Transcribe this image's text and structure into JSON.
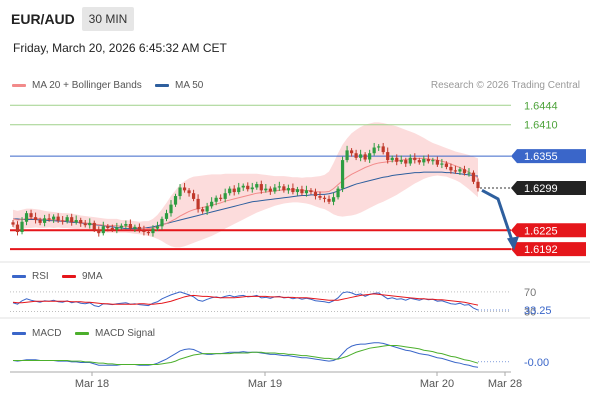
{
  "header": {
    "symbol": "EUR/AUD",
    "timeframe": "30 MIN",
    "datetime": "Friday, March 20, 2026 6:45:32 AM CET",
    "credit": "Research © 2026 Trading Central"
  },
  "legend": {
    "ma20_label": "MA 20 + Bollinger Bands",
    "ma50_label": "MA 50",
    "rsi_label": "RSI",
    "rsi_ma_label": "9MA",
    "macd_label": "MACD",
    "macd_signal_label": "MACD Signal"
  },
  "colors": {
    "ma20": "#f28a8a",
    "ma50": "#2e5f9e",
    "band": "#fbd6d6",
    "bull": "#2e9c41",
    "bear": "#c0392b",
    "support": "#e5161b",
    "resistance_green": "#9fd18a",
    "resistance_blue": "#3a66c9",
    "rsi": "#3a66c9",
    "rsi_ma": "#e5161b",
    "macd": "#3a66c9",
    "macd_signal": "#4caf2c"
  },
  "chart_data": [
    {
      "type": "candlestick",
      "y_range": [
        1.618,
        1.6455
      ],
      "x_ticks": [
        "Mar 18",
        "Mar 19",
        "Mar 20",
        "Mar 28"
      ],
      "levels": [
        {
          "label": "1.6444",
          "value": 1.6444,
          "kind": "resistance"
        },
        {
          "label": "1.6410",
          "value": 1.641,
          "kind": "resistance"
        },
        {
          "label": "1.6355",
          "value": 1.6355,
          "kind": "pivot"
        },
        {
          "label": "1.6299",
          "value": 1.6299,
          "kind": "last"
        },
        {
          "label": "1.6225",
          "value": 1.6225,
          "kind": "support"
        },
        {
          "label": "1.6192",
          "value": 1.6192,
          "kind": "support"
        }
      ],
      "forecast": {
        "from": 1.6295,
        "via": 1.628,
        "to": 1.6195
      },
      "closes": [
        1.6235,
        1.6222,
        1.624,
        1.6255,
        1.6248,
        1.6243,
        1.6238,
        1.6246,
        1.6244,
        1.6249,
        1.6242,
        1.6241,
        1.6248,
        1.6239,
        1.6243,
        1.6237,
        1.6234,
        1.6238,
        1.6226,
        1.622,
        1.6232,
        1.6229,
        1.6226,
        1.623,
        1.6233,
        1.6236,
        1.6228,
        1.6231,
        1.6225,
        1.6222,
        1.622,
        1.6228,
        1.6232,
        1.6245,
        1.6255,
        1.627,
        1.6285,
        1.63,
        1.6295,
        1.629,
        1.628,
        1.6262,
        1.6258,
        1.6267,
        1.6275,
        1.6282,
        1.628,
        1.629,
        1.6298,
        1.6292,
        1.63,
        1.6303,
        1.6297,
        1.63,
        1.6306,
        1.6295,
        1.6298,
        1.6293,
        1.63,
        1.6302,
        1.6295,
        1.6299,
        1.6292,
        1.6297,
        1.629,
        1.6295,
        1.6292,
        1.6285,
        1.6282,
        1.628,
        1.6275,
        1.6283,
        1.6298,
        1.6348,
        1.6365,
        1.636,
        1.6352,
        1.6358,
        1.6349,
        1.636,
        1.637,
        1.6372,
        1.6362,
        1.6348,
        1.6352,
        1.6345,
        1.6348,
        1.6342,
        1.6352,
        1.6348,
        1.6344,
        1.635,
        1.6346,
        1.6348,
        1.634,
        1.6342,
        1.6336,
        1.633,
        1.6328,
        1.6332,
        1.6325,
        1.6326,
        1.631,
        1.6299
      ],
      "ma20": [
        1.6245,
        1.6243,
        1.6244,
        1.6246,
        1.6246,
        1.6246,
        1.6245,
        1.6244,
        1.6244,
        1.6243,
        1.6243,
        1.6242,
        1.6242,
        1.6241,
        1.624,
        1.6239,
        1.6238,
        1.6237,
        1.6236,
        1.6235,
        1.6234,
        1.6233,
        1.6233,
        1.6233,
        1.6232,
        1.6232,
        1.6231,
        1.623,
        1.6229,
        1.6229,
        1.6228,
        1.6229,
        1.6231,
        1.6234,
        1.6237,
        1.6241,
        1.6245,
        1.625,
        1.6254,
        1.6258,
        1.6261,
        1.6263,
        1.6265,
        1.6267,
        1.6269,
        1.6271,
        1.6273,
        1.6276,
        1.6278,
        1.628,
        1.6282,
        1.6284,
        1.6286,
        1.6288,
        1.629,
        1.6291,
        1.6292,
        1.6293,
        1.6294,
        1.6295,
        1.6296,
        1.6296,
        1.6296,
        1.6296,
        1.6295,
        1.6295,
        1.6294,
        1.6293,
        1.6292,
        1.6292,
        1.6293,
        1.6298,
        1.6305,
        1.6312,
        1.6318,
        1.6323,
        1.6327,
        1.6331,
        1.6335,
        1.6338,
        1.6341,
        1.6343,
        1.6344,
        1.6345,
        1.6346,
        1.6347,
        1.6348,
        1.6349,
        1.635,
        1.6351,
        1.6351,
        1.6351,
        1.635,
        1.6349,
        1.6348,
        1.6346,
        1.6344,
        1.6341,
        1.6338,
        1.6335,
        1.6331,
        1.6327,
        1.6322,
        1.6317
      ],
      "ma50": [
        1.6245,
        1.6245,
        1.6244,
        1.6244,
        1.6244,
        1.6244,
        1.6243,
        1.6243,
        1.6242,
        1.6242,
        1.6241,
        1.6241,
        1.624,
        1.6239,
        1.6239,
        1.6238,
        1.6237,
        1.6236,
        1.6235,
        1.6234,
        1.6233,
        1.6232,
        1.6231,
        1.623,
        1.6229,
        1.6228,
        1.6228,
        1.6228,
        1.6228,
        1.6229,
        1.623,
        1.6231,
        1.6233,
        1.6235,
        1.6237,
        1.6239,
        1.6241,
        1.6243,
        1.6245,
        1.6247,
        1.6249,
        1.6251,
        1.6253,
        1.6255,
        1.6257,
        1.6259,
        1.6261,
        1.6263,
        1.6265,
        1.6267,
        1.6269,
        1.6271,
        1.6273,
        1.6275,
        1.6276,
        1.6277,
        1.6278,
        1.6279,
        1.628,
        1.6281,
        1.6282,
        1.6283,
        1.6284,
        1.6285,
        1.6286,
        1.6286,
        1.6287,
        1.6287,
        1.6288,
        1.6288,
        1.6289,
        1.6291,
        1.6294,
        1.6297,
        1.63,
        1.6303,
        1.6306,
        1.6308,
        1.631,
        1.6312,
        1.6314,
        1.6316,
        1.6318,
        1.6319,
        1.6321,
        1.6322,
        1.6323,
        1.6324,
        1.6325,
        1.6326,
        1.6326,
        1.6327,
        1.6327,
        1.6327,
        1.6327,
        1.6327,
        1.6326,
        1.6326,
        1.6325,
        1.6324,
        1.6323,
        1.6322,
        1.6321,
        1.632
      ],
      "band_width": [
        0.0016,
        0.0016,
        0.0017,
        0.0017,
        0.0017,
        0.0016,
        0.0016,
        0.0015,
        0.0014,
        0.0014,
        0.0013,
        0.0013,
        0.0013,
        0.0013,
        0.0013,
        0.0012,
        0.0012,
        0.0012,
        0.0012,
        0.0012,
        0.0012,
        0.0012,
        0.0012,
        0.0012,
        0.0011,
        0.0011,
        0.0011,
        0.0011,
        0.0011,
        0.0012,
        0.0013,
        0.0016,
        0.0021,
        0.0028,
        0.0036,
        0.0044,
        0.005,
        0.0055,
        0.0057,
        0.0058,
        0.0058,
        0.0057,
        0.0056,
        0.0055,
        0.0054,
        0.0052,
        0.005,
        0.0048,
        0.0046,
        0.0044,
        0.0042,
        0.004,
        0.0038,
        0.0036,
        0.0034,
        0.0032,
        0.003,
        0.0028,
        0.0026,
        0.0025,
        0.0024,
        0.0023,
        0.0022,
        0.0022,
        0.0022,
        0.0023,
        0.0024,
        0.0026,
        0.0028,
        0.003,
        0.0035,
        0.0045,
        0.0055,
        0.0063,
        0.0068,
        0.0072,
        0.0074,
        0.0075,
        0.0075,
        0.0074,
        0.0073,
        0.0071,
        0.0069,
        0.0066,
        0.0063,
        0.006,
        0.0056,
        0.0052,
        0.0048,
        0.0044,
        0.004,
        0.0036,
        0.0032,
        0.0029,
        0.0027,
        0.0026,
        0.0025,
        0.0025,
        0.0025,
        0.0026,
        0.0028,
        0.003,
        0.0032,
        0.0034
      ]
    },
    {
      "type": "line",
      "name": "RSI",
      "levels": [
        {
          "label": "70",
          "value": 70
        },
        {
          "label": "30",
          "value": 30
        }
      ],
      "last_label": "33.25",
      "y_range": [
        25,
        78
      ],
      "rsi": [
        48,
        45,
        52,
        56,
        53,
        51,
        49,
        52,
        51,
        53,
        50,
        49,
        52,
        48,
        50,
        47,
        46,
        48,
        42,
        40,
        46,
        45,
        44,
        46,
        47,
        48,
        45,
        46,
        44,
        43,
        42,
        47,
        50,
        56,
        60,
        64,
        67,
        70,
        67,
        64,
        60,
        53,
        51,
        55,
        58,
        60,
        58,
        61,
        63,
        60,
        62,
        63,
        60,
        61,
        63,
        58,
        59,
        57,
        60,
        61,
        58,
        59,
        56,
        58,
        55,
        57,
        55,
        52,
        51,
        50,
        48,
        52,
        58,
        68,
        70,
        68,
        64,
        66,
        61,
        65,
        67,
        68,
        62,
        56,
        58,
        55,
        56,
        53,
        57,
        55,
        53,
        56,
        54,
        55,
        51,
        52,
        49,
        46,
        45,
        47,
        43,
        44,
        37,
        33
      ],
      "ma9": [
        49,
        48,
        48,
        49,
        50,
        51,
        51,
        51,
        51,
        51,
        51,
        51,
        51,
        50,
        50,
        50,
        49,
        49,
        48,
        47,
        46,
        46,
        45,
        45,
        45,
        45,
        45,
        45,
        46,
        46,
        45,
        45,
        46,
        47,
        49,
        51,
        54,
        57,
        60,
        62,
        63,
        62,
        61,
        61,
        60,
        59,
        58,
        58,
        58,
        58,
        59,
        60,
        61,
        61,
        61,
        61,
        61,
        60,
        60,
        60,
        59,
        59,
        59,
        58,
        58,
        58,
        57,
        56,
        55,
        54,
        53,
        53,
        53,
        55,
        57,
        59,
        61,
        63,
        64,
        65,
        66,
        65,
        64,
        63,
        62,
        61,
        60,
        59,
        58,
        57,
        56,
        56,
        55,
        55,
        54,
        54,
        53,
        52,
        51,
        50,
        49,
        47,
        45,
        43
      ]
    },
    {
      "type": "line",
      "name": "MACD",
      "last_label": "-0.00",
      "y_range": [
        -0.0012,
        0.0032
      ],
      "macd": [
        0.0002,
        0.0001,
        0.0002,
        0.0003,
        0.0003,
        0.0003,
        0.0002,
        0.0002,
        0.0002,
        0.0002,
        0.0001,
        0.0001,
        0.0001,
        0.0,
        0.0,
        -0.0001,
        -0.0001,
        -0.0001,
        -0.0003,
        -0.0005,
        -0.0005,
        -0.0005,
        -0.0005,
        -0.0005,
        -0.0004,
        -0.0004,
        -0.0004,
        -0.0004,
        -0.0005,
        -0.0005,
        -0.0005,
        -0.0004,
        -0.0002,
        0.0001,
        0.0004,
        0.0008,
        0.0012,
        0.0016,
        0.0018,
        0.0019,
        0.0018,
        0.0015,
        0.0012,
        0.0011,
        0.0011,
        0.0012,
        0.0012,
        0.0013,
        0.0014,
        0.0014,
        0.0014,
        0.0015,
        0.0014,
        0.0014,
        0.0014,
        0.0013,
        0.0012,
        0.0011,
        0.0011,
        0.001,
        0.0009,
        0.0009,
        0.0008,
        0.0007,
        0.0006,
        0.0006,
        0.0005,
        0.0004,
        0.0003,
        0.0002,
        0.0001,
        0.0002,
        0.0005,
        0.0012,
        0.0019,
        0.0023,
        0.0025,
        0.0026,
        0.0026,
        0.0027,
        0.0028,
        0.0028,
        0.0027,
        0.0025,
        0.0023,
        0.0021,
        0.0019,
        0.0017,
        0.0016,
        0.0014,
        0.0012,
        0.0011,
        0.001,
        0.0008,
        0.0006,
        0.0005,
        0.0003,
        0.0001,
        -0.0001,
        -0.0002,
        -0.0004,
        -0.0005,
        -0.0007,
        -0.0008
      ],
      "signal": [
        0.0002,
        0.0002,
        0.0002,
        0.0002,
        0.0002,
        0.0002,
        0.0002,
        0.0002,
        0.0002,
        0.0002,
        0.0002,
        0.0002,
        0.0002,
        0.0001,
        0.0001,
        0.0001,
        0.0,
        0.0,
        -0.0001,
        -0.0002,
        -0.0002,
        -0.0003,
        -0.0003,
        -0.0004,
        -0.0004,
        -0.0004,
        -0.0004,
        -0.0004,
        -0.0004,
        -0.0004,
        -0.0004,
        -0.0004,
        -0.0004,
        -0.0003,
        -0.0002,
        -0.0001,
        0.0001,
        0.0004,
        0.0006,
        0.0008,
        0.001,
        0.0011,
        0.0012,
        0.0012,
        0.0012,
        0.0012,
        0.0012,
        0.0012,
        0.0012,
        0.0013,
        0.0013,
        0.0013,
        0.0013,
        0.0014,
        0.0014,
        0.0014,
        0.0013,
        0.0013,
        0.0013,
        0.0012,
        0.0012,
        0.0011,
        0.0011,
        0.001,
        0.0009,
        0.0009,
        0.0008,
        0.0007,
        0.0006,
        0.0005,
        0.0005,
        0.0004,
        0.0004,
        0.0006,
        0.0008,
        0.0011,
        0.0014,
        0.0016,
        0.0018,
        0.002,
        0.0021,
        0.0022,
        0.0023,
        0.0024,
        0.0024,
        0.0024,
        0.0023,
        0.0022,
        0.0021,
        0.002,
        0.0019,
        0.0017,
        0.0016,
        0.0015,
        0.0013,
        0.0012,
        0.001,
        0.0008,
        0.0007,
        0.0005,
        0.0003,
        0.0002,
        0.0,
        -0.0002
      ]
    }
  ]
}
